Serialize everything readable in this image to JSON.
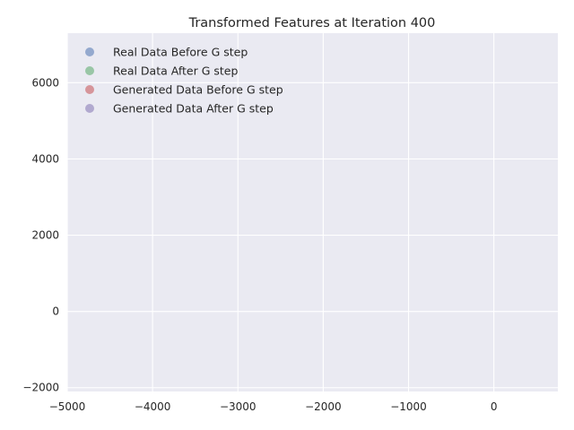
{
  "chart_data": {
    "type": "scatter",
    "title": "Transformed Features at Iteration 400",
    "xlabel": "",
    "ylabel": "",
    "xlim": [
      -5000,
      750
    ],
    "ylim": [
      -2100,
      7300
    ],
    "xticks": [
      -5000,
      -4000,
      -3000,
      -2000,
      -1000,
      0
    ],
    "yticks": [
      -2000,
      0,
      2000,
      4000,
      6000
    ],
    "xtick_labels": [
      "−5000",
      "−4000",
      "−3000",
      "−2000",
      "−1000",
      "0"
    ],
    "ytick_labels": [
      "−2000",
      "0",
      "2000",
      "4000",
      "6000"
    ],
    "grid": true,
    "legend_position": "top-left",
    "background": "#eaeaf2",
    "series": [
      {
        "name": "Real Data Before G step",
        "color": "#4c72b0",
        "points": []
      },
      {
        "name": "Real Data After G step",
        "color": "#55a868",
        "points": []
      },
      {
        "name": "Generated Data Before G step",
        "color": "#c44e52",
        "points": []
      },
      {
        "name": "Generated Data After G step",
        "color": "#8172b2",
        "points": []
      }
    ]
  }
}
